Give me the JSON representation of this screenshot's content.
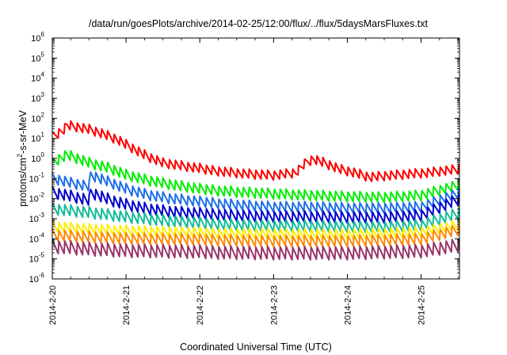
{
  "chart_data": {
    "type": "line",
    "title": "/data/run/goesPlots/archive/2014-02-25/12:00/flux/../flux/5daysMarsFluxes.txt",
    "xlabel": "Coordinated Universal Time (UTC)",
    "ylabel": {
      "prefix": "protons/cm",
      "sup": "2",
      "suffix": "-s-sr-MeV"
    },
    "yscale": "log",
    "ylim_exp": [
      -6,
      6
    ],
    "ytick_labels": [
      {
        "base": "10",
        "exp": "-6"
      },
      {
        "base": "10",
        "exp": "-5"
      },
      {
        "base": "10",
        "exp": "-4"
      },
      {
        "base": "10",
        "exp": "-3"
      },
      {
        "base": "10",
        "exp": "-2"
      },
      {
        "base": "10",
        "exp": "-1"
      },
      {
        "base": "10",
        "exp": "0"
      },
      {
        "base": "10",
        "exp": "1"
      },
      {
        "base": "10",
        "exp": "2"
      },
      {
        "base": "10",
        "exp": "3"
      },
      {
        "base": "10",
        "exp": "4"
      },
      {
        "base": "10",
        "exp": "5"
      },
      {
        "base": "10",
        "exp": "6"
      }
    ],
    "xlim_days": [
      0,
      5.52
    ],
    "x_ticks": [
      {
        "label": "2014-2-20",
        "day": 0
      },
      {
        "label": "2014-2-21",
        "day": 1
      },
      {
        "label": "2014-2-22",
        "day": 2
      },
      {
        "label": "2014-2-23",
        "day": 3
      },
      {
        "label": "2014-2-24",
        "day": 4
      },
      {
        "label": "2014-2-25",
        "day": 5
      }
    ],
    "grid": false,
    "legend": "none",
    "series": [
      {
        "color": "#ff0000",
        "points": [
          [
            0,
            12
          ],
          [
            0.15,
            25
          ],
          [
            0.2,
            45
          ],
          [
            0.5,
            28
          ],
          [
            0.7,
            16
          ],
          [
            0.9,
            8
          ],
          [
            1.1,
            3
          ],
          [
            1.3,
            1.2
          ],
          [
            1.5,
            0.6
          ],
          [
            1.8,
            0.4
          ],
          [
            2.2,
            0.25
          ],
          [
            2.6,
            0.18
          ],
          [
            3.0,
            0.15
          ],
          [
            3.3,
            0.2
          ],
          [
            3.45,
            0.7
          ],
          [
            3.55,
            0.95
          ],
          [
            3.7,
            0.6
          ],
          [
            3.9,
            0.3
          ],
          [
            4.1,
            0.2
          ],
          [
            4.3,
            0.12
          ],
          [
            4.5,
            0.14
          ],
          [
            4.8,
            0.17
          ],
          [
            5.1,
            0.2
          ],
          [
            5.3,
            0.25
          ],
          [
            5.52,
            0.3
          ]
        ],
        "sawtooth": 0.5
      },
      {
        "color": "#00ee00",
        "points": [
          [
            0,
            0.6
          ],
          [
            0.2,
            1.5
          ],
          [
            0.5,
            0.6
          ],
          [
            0.8,
            0.3
          ],
          [
            1.0,
            0.15
          ],
          [
            1.3,
            0.08
          ],
          [
            1.6,
            0.05
          ],
          [
            2.0,
            0.03
          ],
          [
            2.5,
            0.022
          ],
          [
            3.0,
            0.018
          ],
          [
            3.5,
            0.015
          ],
          [
            4.0,
            0.013
          ],
          [
            4.5,
            0.012
          ],
          [
            5.0,
            0.015
          ],
          [
            5.52,
            0.05
          ]
        ],
        "sawtooth": 0.55
      },
      {
        "color": "#1e6ee6",
        "points": [
          [
            0,
            0.1
          ],
          [
            0.25,
            0.06
          ],
          [
            0.5,
            0.04
          ],
          [
            0.52,
            0.15
          ],
          [
            0.8,
            0.06
          ],
          [
            1.0,
            0.03
          ],
          [
            1.3,
            0.015
          ],
          [
            1.6,
            0.01
          ],
          [
            2.0,
            0.007
          ],
          [
            2.5,
            0.005
          ],
          [
            3.0,
            0.004
          ],
          [
            3.5,
            0.004
          ],
          [
            4.0,
            0.0035
          ],
          [
            4.5,
            0.0035
          ],
          [
            5.0,
            0.004
          ],
          [
            5.52,
            0.02
          ]
        ],
        "sawtooth": 0.55
      },
      {
        "color": "#0000cc",
        "points": [
          [
            0,
            0.02
          ],
          [
            0.3,
            0.012
          ],
          [
            0.5,
            0.008
          ],
          [
            0.52,
            0.02
          ],
          [
            0.8,
            0.008
          ],
          [
            1.0,
            0.005
          ],
          [
            1.3,
            0.003
          ],
          [
            1.6,
            0.0022
          ],
          [
            2.0,
            0.0018
          ],
          [
            2.5,
            0.0015
          ],
          [
            3.0,
            0.0013
          ],
          [
            3.5,
            0.0013
          ],
          [
            4.0,
            0.0012
          ],
          [
            4.5,
            0.0012
          ],
          [
            5.0,
            0.0015
          ],
          [
            5.52,
            0.01
          ]
        ],
        "sawtooth": 0.6
      },
      {
        "color": "#11bb99",
        "points": [
          [
            0,
            0.003
          ],
          [
            0.5,
            0.002
          ],
          [
            1.0,
            0.0012
          ],
          [
            1.5,
            0.0008
          ],
          [
            2.0,
            0.0006
          ],
          [
            2.5,
            0.0005
          ],
          [
            3.0,
            0.00045
          ],
          [
            3.5,
            0.00045
          ],
          [
            4.0,
            0.0004
          ],
          [
            4.5,
            0.0004
          ],
          [
            5.0,
            0.0005
          ],
          [
            5.52,
            0.002
          ]
        ],
        "sawtooth": 0.6
      },
      {
        "color": "#ffee00",
        "points": [
          [
            0,
            0.0004
          ],
          [
            0.5,
            0.0003
          ],
          [
            1.0,
            0.00025
          ],
          [
            2.0,
            0.0002
          ],
          [
            3.0,
            0.00018
          ],
          [
            4.0,
            0.00017
          ],
          [
            5.0,
            0.00022
          ],
          [
            5.52,
            0.0005
          ]
        ],
        "sawtooth": 0.55
      },
      {
        "color": "#ff8800",
        "points": [
          [
            0,
            0.00015
          ],
          [
            0.5,
            0.00012
          ],
          [
            1.0,
            0.0001
          ],
          [
            2.0,
            9e-05
          ],
          [
            3.0,
            8e-05
          ],
          [
            4.0,
            8e-05
          ],
          [
            5.0,
            0.0001
          ],
          [
            5.52,
            0.0003
          ]
        ],
        "sawtooth": 0.6
      },
      {
        "color": "#993366",
        "points": [
          [
            0,
            4e-05
          ],
          [
            0.5,
            3e-05
          ],
          [
            1.0,
            2.5e-05
          ],
          [
            2.0,
            2.2e-05
          ],
          [
            3.0,
            2e-05
          ],
          [
            4.0,
            2e-05
          ],
          [
            5.0,
            2.5e-05
          ],
          [
            5.52,
            5e-05
          ]
        ],
        "sawtooth": 0.7
      }
    ]
  }
}
